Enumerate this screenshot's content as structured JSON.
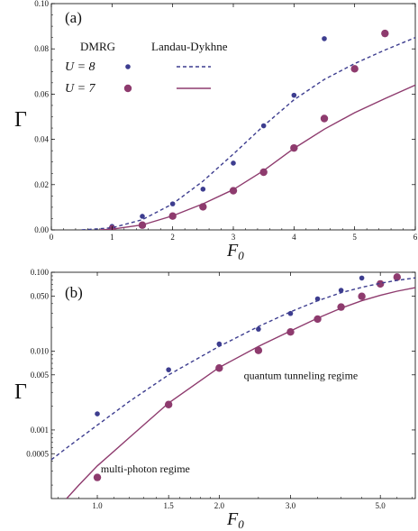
{
  "chart_data": [
    {
      "type": "scatter",
      "panel_label": "(a)",
      "xlabel": "F",
      "xlabel_sub": "0",
      "ylabel": "Γ",
      "xscale": "linear",
      "yscale": "linear",
      "xlim": [
        0,
        6
      ],
      "ylim": [
        0,
        0.1
      ],
      "xticks": [
        0,
        1,
        2,
        3,
        4,
        5,
        6
      ],
      "xtick_labels": [
        "0",
        "1",
        "2",
        "3",
        "4",
        "5",
        "6"
      ],
      "yticks": [
        0,
        0.02,
        0.04,
        0.06,
        0.08,
        0.1
      ],
      "ytick_labels": [
        "0.00",
        "0.02",
        "0.04",
        "0.06",
        "0.08",
        "0.10"
      ],
      "legend": {
        "placement": "top-left",
        "header_dmrg": "DMRG",
        "header_theory": "Landau-Dykhne",
        "rows": [
          {
            "label": "U = 8",
            "color": "#3d3d8f",
            "marker": "small-dot",
            "line": "dashed"
          },
          {
            "label": "U = 7",
            "color": "#8e3b6e",
            "marker": "large-dot",
            "line": "solid"
          }
        ]
      },
      "series": [
        {
          "name": "U = 8",
          "kind": "points",
          "color": "#3d3d8f",
          "x": [
            1.0,
            1.5,
            2.0,
            2.5,
            3.0,
            3.5,
            4.0,
            4.5
          ],
          "y": [
            0.0015,
            0.006,
            0.0115,
            0.018,
            0.0295,
            0.046,
            0.0595,
            0.0845
          ]
        },
        {
          "name": "U = 7",
          "kind": "points",
          "color": "#8e3b6e",
          "x": [
            1.0,
            1.5,
            2.0,
            2.5,
            3.0,
            3.5,
            4.0,
            4.5,
            5.0,
            5.5
          ],
          "y": [
            0.0004,
            0.0021,
            0.0061,
            0.0102,
            0.0173,
            0.0255,
            0.0362,
            0.0492,
            0.0712,
            0.0868
          ]
        },
        {
          "name": "U = 8",
          "kind": "line",
          "style": "dashed",
          "color": "#3d3d8f",
          "x": [
            0.5,
            1.0,
            1.5,
            2.0,
            2.5,
            3.0,
            3.5,
            4.0,
            4.5,
            5.0,
            5.5,
            6.0
          ],
          "y": [
            1e-05,
            0.0009,
            0.0045,
            0.0115,
            0.0215,
            0.0335,
            0.046,
            0.0575,
            0.0665,
            0.0735,
            0.0795,
            0.085
          ]
        },
        {
          "name": "U = 7",
          "kind": "line",
          "style": "solid",
          "color": "#8e3b6e",
          "x": [
            0.8,
            1.0,
            1.5,
            2.0,
            2.5,
            3.0,
            3.5,
            4.0,
            4.5,
            5.0,
            5.5,
            6.0
          ],
          "y": [
            2e-05,
            0.0003,
            0.0022,
            0.0062,
            0.0115,
            0.0178,
            0.0262,
            0.036,
            0.0445,
            0.0518,
            0.058,
            0.064
          ]
        }
      ]
    },
    {
      "type": "scatter",
      "panel_label": "(b)",
      "xlabel": "F",
      "xlabel_sub": "0",
      "ylabel": "Γ",
      "xscale": "log",
      "yscale": "log",
      "xlim": [
        0.77,
        6.1
      ],
      "ylim": [
        0.000135,
        0.1
      ],
      "xticks": [
        1.0,
        1.5,
        2.0,
        3.0,
        5.0
      ],
      "xtick_labels": [
        "1.0",
        "1.5",
        "2.0",
        "3.0",
        "5.0"
      ],
      "yticks": [
        0.0005,
        0.001,
        0.005,
        0.01,
        0.05,
        0.1
      ],
      "ytick_labels": [
        "0.0005",
        "0.001",
        "0.005",
        "0.010",
        "0.050",
        "0.100"
      ],
      "annotations": [
        {
          "text": "quantum tunneling regime",
          "x": 2.3,
          "y": 0.0044
        },
        {
          "text": "multi-photon regime",
          "x": 1.02,
          "y": 0.00029
        }
      ],
      "series": [
        {
          "name": "U = 8",
          "kind": "points",
          "color": "#3d3d8f",
          "x": [
            1.0,
            1.5,
            2.0,
            2.5,
            3.0,
            3.5,
            4.0,
            4.5
          ],
          "y": [
            0.0016,
            0.0058,
            0.0123,
            0.019,
            0.03,
            0.046,
            0.059,
            0.0845
          ]
        },
        {
          "name": "U = 7",
          "kind": "points",
          "color": "#8e3b6e",
          "x": [
            1.0,
            1.5,
            2.0,
            2.5,
            3.0,
            3.5,
            4.0,
            4.5,
            5.0,
            5.5
          ],
          "y": [
            0.00025,
            0.0021,
            0.0061,
            0.0102,
            0.0175,
            0.0255,
            0.0362,
            0.0495,
            0.0712,
            0.0868
          ]
        },
        {
          "name": "U = 8",
          "kind": "line",
          "style": "dashed",
          "color": "#3d3d8f",
          "x": [
            0.77,
            0.85,
            1.0,
            1.2,
            1.5,
            2.0,
            2.5,
            3.0,
            3.5,
            4.0,
            4.5,
            5.0,
            5.5,
            6.1
          ],
          "y": [
            0.00042,
            0.00062,
            0.00115,
            0.0023,
            0.005,
            0.0115,
            0.0205,
            0.0315,
            0.0435,
            0.055,
            0.0645,
            0.0725,
            0.079,
            0.085
          ]
        },
        {
          "name": "U = 7",
          "kind": "line",
          "style": "solid",
          "color": "#8e3b6e",
          "x": [
            0.84,
            0.9,
            1.0,
            1.2,
            1.5,
            2.0,
            2.5,
            3.0,
            3.5,
            4.0,
            4.5,
            5.0,
            5.5,
            6.1
          ],
          "y": [
            0.000135,
            0.0002,
            0.00035,
            0.0008,
            0.0022,
            0.0062,
            0.0115,
            0.018,
            0.0262,
            0.035,
            0.0435,
            0.051,
            0.0575,
            0.064
          ]
        }
      ]
    }
  ]
}
